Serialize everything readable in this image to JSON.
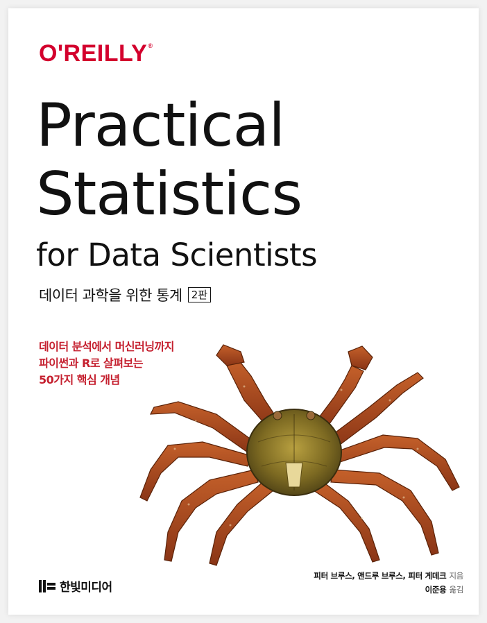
{
  "cover": {
    "publisher": "O'REILLY",
    "publisher_mark": "®",
    "title_line_1": "Practical",
    "title_line_2": "Statistics",
    "title_line_3": "for Data Scientists",
    "subtitle_korean": "데이터 과학을 위한 통계",
    "edition": "2판",
    "tagline": [
      "데이터 분석에서 머신러닝까지",
      "파이썬과 R로 살펴보는",
      "50가지 핵심 개념"
    ],
    "imprint": "한빛미디어",
    "authors": "피터 브루스, 앤드루 브루스, 피터 게데크",
    "authors_role": "지음",
    "translator": "이준용",
    "translator_role": "옮김",
    "illustration": "crab-illustration"
  },
  "colors": {
    "brand_red": "#d3002d",
    "tagline_red": "#c5202f",
    "crab_shell": "#a8481e",
    "carapace": "#8a7a2a"
  }
}
